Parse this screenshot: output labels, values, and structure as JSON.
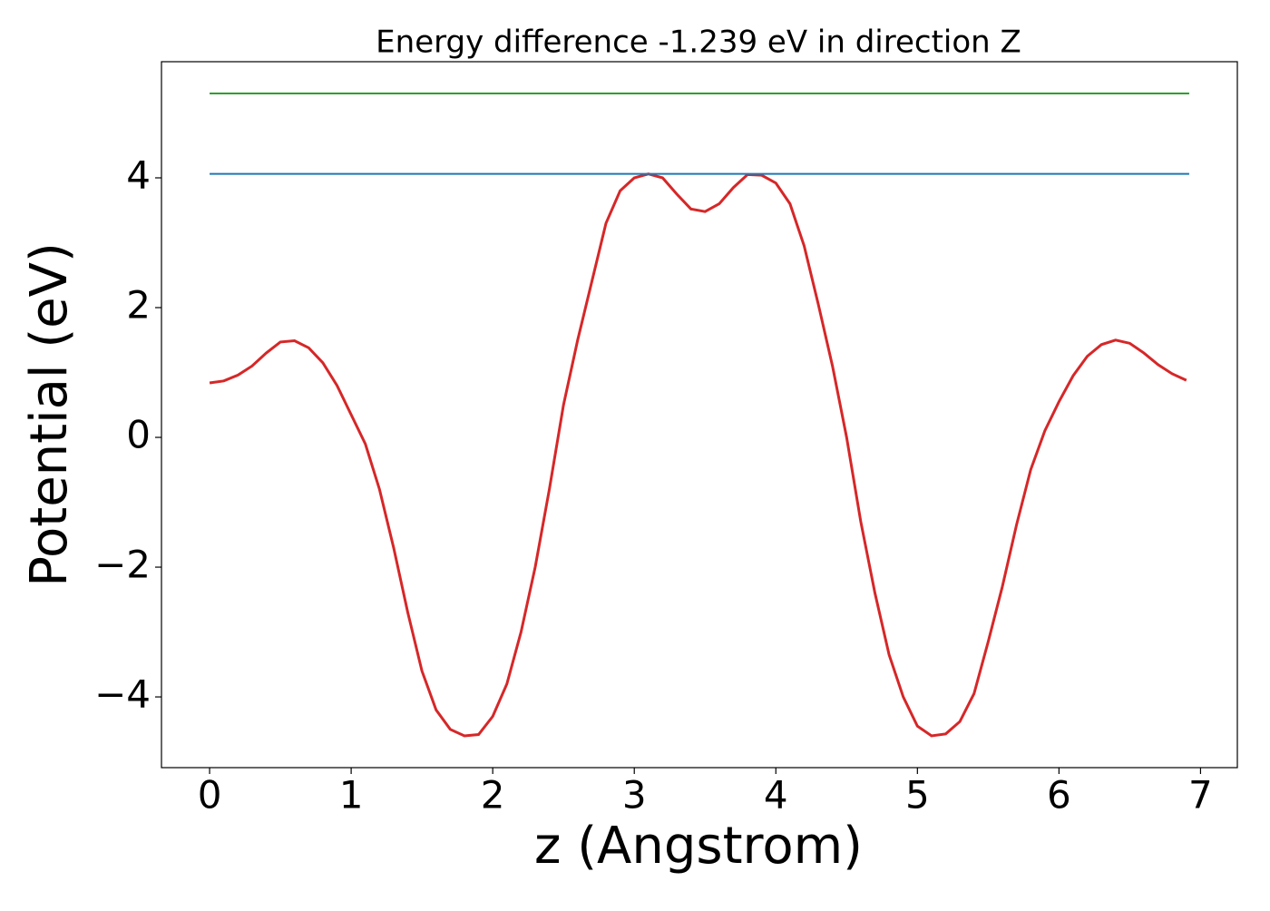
{
  "chart_data": {
    "type": "line",
    "title": "Energy difference -1.239 eV in direction Z",
    "x_label": "z (Angstrom)",
    "y_label": "Potential (eV)",
    "xlim": [
      -0.34,
      7.26
    ],
    "ylim": [
      -5.09,
      5.79
    ],
    "xticks": [
      0,
      1,
      2,
      3,
      4,
      5,
      6,
      7
    ],
    "yticks": [
      {
        "value": -4,
        "label": "−4"
      },
      {
        "value": -2,
        "label": "−2"
      },
      0,
      2,
      4
    ],
    "grid": false,
    "series": [
      {
        "color": "#d62728",
        "x": [
          0,
          0.1,
          0.2,
          0.3,
          0.4,
          0.5,
          0.6,
          0.7,
          0.8,
          0.9,
          1.0,
          1.1,
          1.2,
          1.3,
          1.4,
          1.5,
          1.6,
          1.7,
          1.8,
          1.9,
          2.0,
          2.1,
          2.2,
          2.3,
          2.4,
          2.5,
          2.6,
          2.7,
          2.8,
          2.9,
          3.0,
          3.1,
          3.2,
          3.3,
          3.4,
          3.5,
          3.6,
          3.7,
          3.8,
          3.9,
          4.0,
          4.1,
          4.2,
          4.3,
          4.4,
          4.5,
          4.6,
          4.7,
          4.8,
          4.9,
          5.0,
          5.1,
          5.2,
          5.3,
          5.4,
          5.5,
          5.6,
          5.7,
          5.8,
          5.9,
          6.0,
          6.1,
          6.2,
          6.3,
          6.4,
          6.5,
          6.6,
          6.7,
          6.8,
          6.9
        ],
        "values": [
          0.84,
          0.87,
          0.96,
          1.1,
          1.3,
          1.47,
          1.49,
          1.38,
          1.15,
          0.8,
          0.35,
          -0.1,
          -0.8,
          -1.7,
          -2.7,
          -3.6,
          -4.2,
          -4.5,
          -4.6,
          -4.58,
          -4.3,
          -3.8,
          -3.0,
          -2.0,
          -0.8,
          0.5,
          1.5,
          2.4,
          3.3,
          3.8,
          4.0,
          4.06,
          4.0,
          3.75,
          3.52,
          3.48,
          3.6,
          3.85,
          4.05,
          4.04,
          3.92,
          3.6,
          2.95,
          2.05,
          1.1,
          0.0,
          -1.3,
          -2.4,
          -3.35,
          -4.0,
          -4.45,
          -4.6,
          -4.57,
          -4.38,
          -3.95,
          -3.15,
          -2.3,
          -1.35,
          -0.5,
          0.1,
          0.55,
          0.95,
          1.25,
          1.43,
          1.5,
          1.45,
          1.3,
          1.12,
          0.98,
          0.88
        ]
      },
      {
        "color": "#1f77b4",
        "x": [
          0,
          6.92
        ],
        "values": [
          4.061,
          4.061
        ]
      },
      {
        "color": "#2ca02c",
        "x": [
          0,
          6.92
        ],
        "values": [
          5.3,
          5.3
        ]
      }
    ]
  }
}
